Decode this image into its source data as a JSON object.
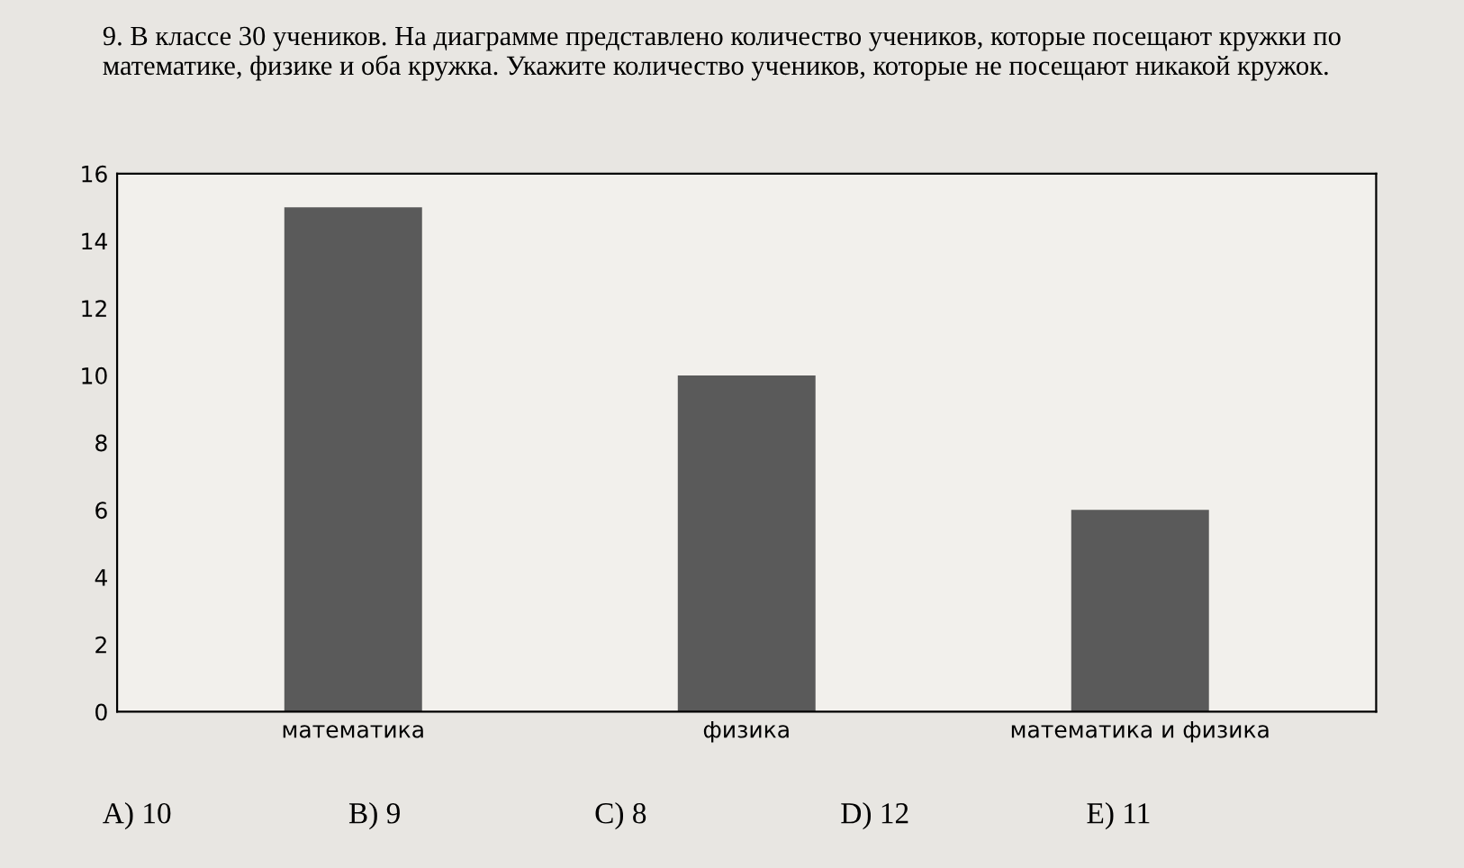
{
  "chart_data": {
    "type": "bar",
    "title": "9. В классе 30 учеников. На диаграмме представлено количество учеников, которые посещают кружки по математике, физике и оба кружка. Укажите количество учеников, которые не посещают никакой кружок.",
    "categories": [
      "математика",
      "физика",
      "математика и физика"
    ],
    "values": [
      15,
      10,
      6
    ],
    "color": "#5a5a5a",
    "ylim": [
      0,
      16
    ],
    "yticks": [
      0,
      2,
      4,
      6,
      8,
      10,
      12,
      14,
      16
    ],
    "grid": false,
    "annotations": [
      "A) 10",
      "B) 9",
      "C) 8",
      "D) 12",
      "E) 11"
    ]
  }
}
